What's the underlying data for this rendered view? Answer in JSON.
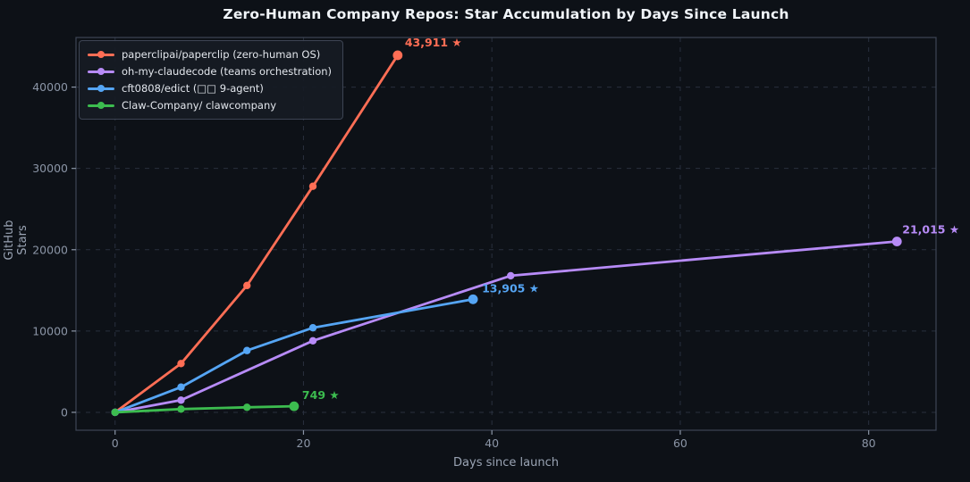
{
  "chart_data": {
    "type": "line",
    "title": "Zero-Human Company Repos: Star Accumulation by Days Since Launch",
    "xlabel": "Days since launch",
    "ylabel": "GitHub Stars",
    "xlim": [
      -4.15,
      87.15
    ],
    "ylim": [
      -2200,
      46100
    ],
    "xticks": [
      0,
      20,
      40,
      60,
      80
    ],
    "yticks": [
      0,
      10000,
      20000,
      30000,
      40000
    ],
    "grid": true,
    "grid_style": "dashed",
    "legend_position": "upper-left",
    "series": [
      {
        "name": "paperclipai/paperclip (zero-human OS)",
        "color": "#ff6e55",
        "x": [
          0,
          7,
          14,
          21,
          30
        ],
        "y": [
          0,
          6000,
          15600,
          27800,
          43911
        ],
        "final_label": "43,911 ★",
        "label_offset": [
          8,
          -10
        ]
      },
      {
        "name": "oh-my-claudecode (teams orchestration)",
        "color": "#b78bf7",
        "x": [
          0,
          7,
          21,
          42,
          83
        ],
        "y": [
          0,
          1500,
          8800,
          16800,
          21015
        ],
        "final_label": "21,015 ★",
        "label_offset": [
          6,
          -9
        ]
      },
      {
        "name": "cft0808/edict (□□ 9-agent)",
        "color": "#55a5f4",
        "x": [
          0,
          7,
          14,
          21,
          38
        ],
        "y": [
          0,
          3100,
          7600,
          10400,
          13905
        ],
        "final_label": "13,905 ★",
        "label_offset": [
          10,
          -8
        ]
      },
      {
        "name": "Claw-Company/ clawcompany",
        "color": "#3cbc4f",
        "x": [
          0,
          7,
          14,
          19
        ],
        "y": [
          0,
          400,
          620,
          749
        ],
        "final_label": "749 ★",
        "label_offset": [
          9,
          -8
        ]
      }
    ]
  },
  "colors": {
    "background": "#0d1117",
    "plot_border": "#3d4656",
    "gridline": "#29303e",
    "tick_label": "#8b95a6",
    "axis_label": "#9aa4b4",
    "title": "#f0f4f8",
    "legend_background": "#161b24",
    "legend_border": "#3d4453",
    "legend_text": "#e2e6ec"
  }
}
